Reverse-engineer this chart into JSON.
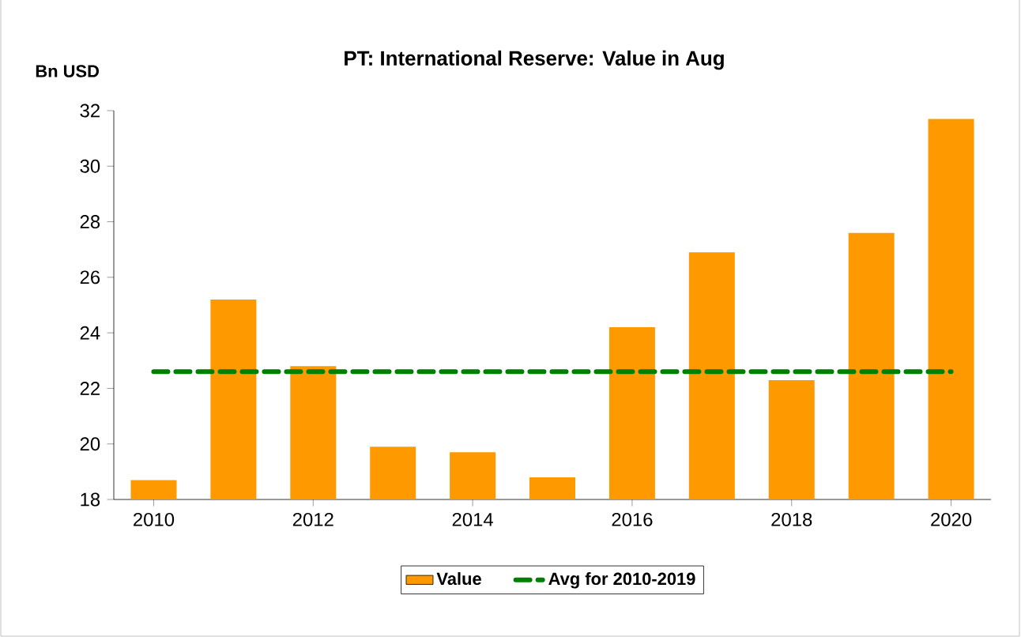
{
  "chart_data": {
    "type": "bar",
    "title": "PT: International Reserve: Value in Aug",
    "ylabel": "Bn USD",
    "xlim": [
      2009.5,
      2020.5
    ],
    "xticks": [
      2010,
      2012,
      2014,
      2016,
      2018,
      2020
    ],
    "ylim": [
      18,
      32
    ],
    "yticks": [
      18,
      20,
      22,
      24,
      26,
      28,
      30,
      32
    ],
    "legend": "bottom",
    "series": [
      {
        "name": "Value",
        "color": "#ff9900",
        "x": [
          2010,
          2011,
          2012,
          2013,
          2014,
          2015,
          2016,
          2017,
          2018,
          2019,
          2020
        ],
        "values": [
          18.7,
          25.2,
          22.8,
          19.9,
          19.7,
          18.8,
          24.2,
          26.9,
          22.3,
          27.6,
          31.7
        ]
      },
      {
        "name": "Avg for 2010-2019",
        "type": "line",
        "line_style": "dashed",
        "color": "#008000",
        "x": [
          2010,
          2020
        ],
        "values": [
          22.6,
          22.6
        ]
      }
    ]
  }
}
